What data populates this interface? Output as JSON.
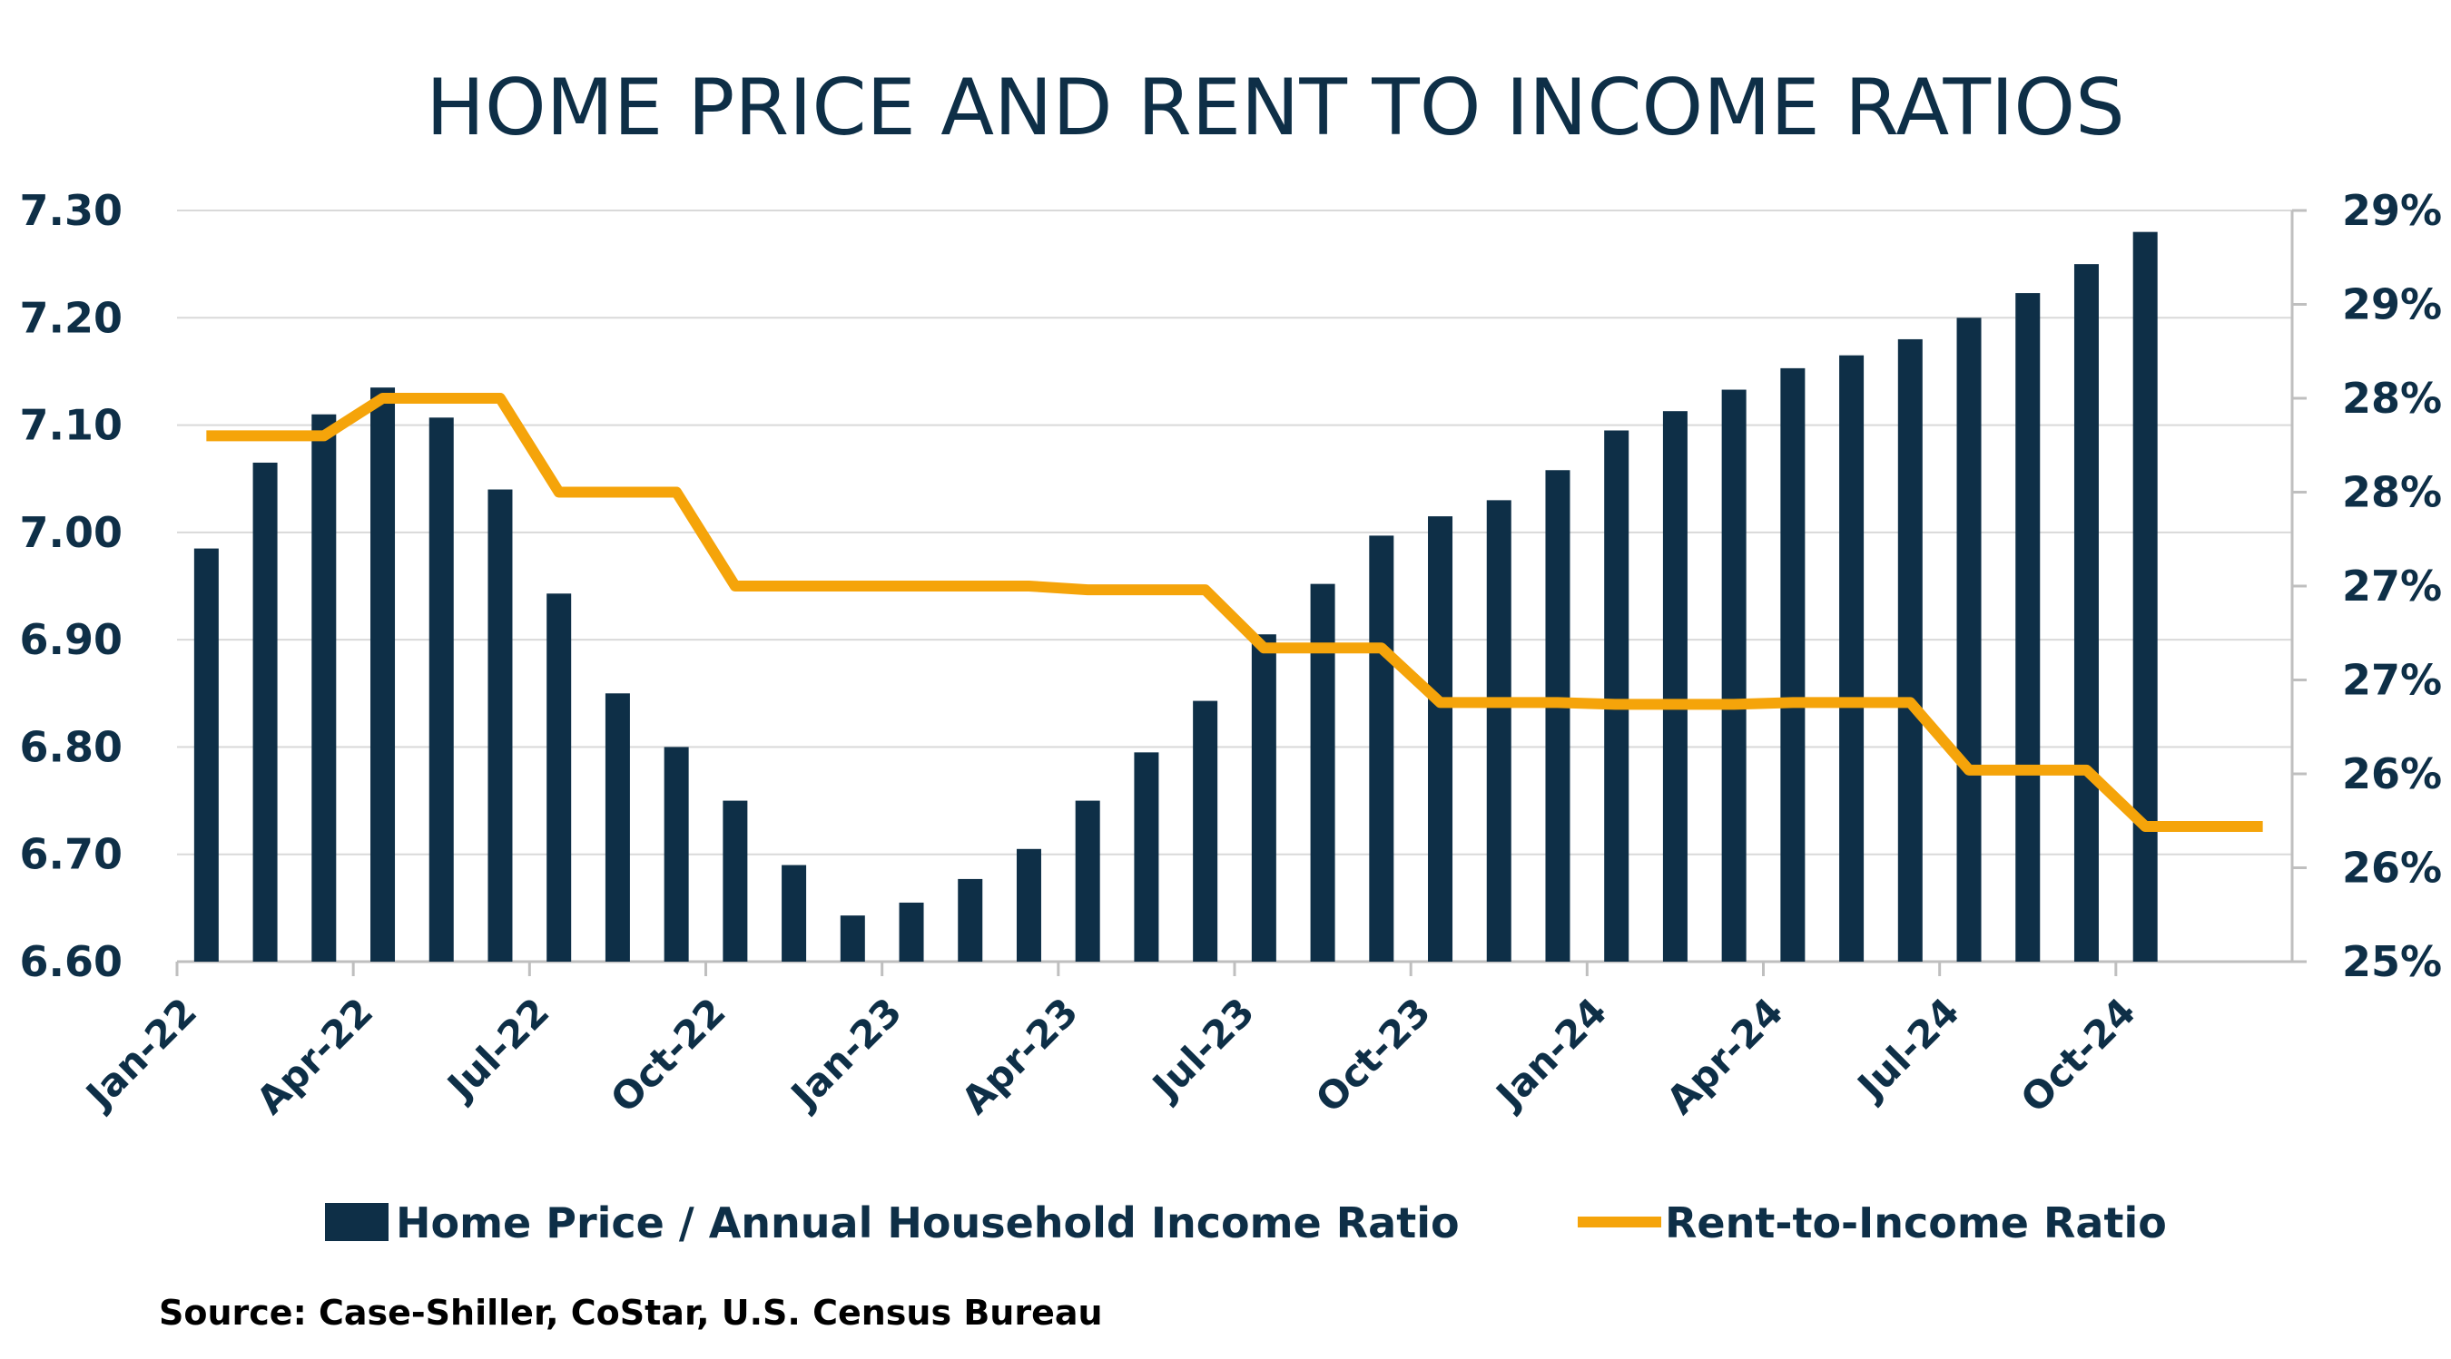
{
  "chart_data": {
    "type": "bar+line",
    "title": "HOME PRICE AND RENT TO INCOME RATIOS",
    "colors": {
      "bar": "#0e2f47",
      "line": "#f5a40a",
      "grid": "#d9d9d9",
      "axis": "#bfbfbf",
      "text": "#0e2f47"
    },
    "categories": [
      "Jan-22",
      "Feb-22",
      "Mar-22",
      "Apr-22",
      "May-22",
      "Jun-22",
      "Jul-22",
      "Aug-22",
      "Sep-22",
      "Oct-22",
      "Nov-22",
      "Dec-22",
      "Jan-23",
      "Feb-23",
      "Mar-23",
      "Apr-23",
      "May-23",
      "Jun-23",
      "Jul-23",
      "Aug-23",
      "Sep-23",
      "Oct-23",
      "Nov-23",
      "Dec-23",
      "Jan-24",
      "Feb-24",
      "Mar-24",
      "Apr-24",
      "May-24",
      "Jun-24",
      "Jul-24",
      "Aug-24",
      "Sep-24",
      "Oct-24",
      "Nov-24",
      "Dec-24"
    ],
    "x_tick_labels": [
      "Jan-22",
      "Apr-22",
      "Jul-22",
      "Oct-22",
      "Jan-23",
      "Apr-23",
      "Jul-23",
      "Oct-23",
      "Jan-24",
      "Apr-24",
      "Jul-24",
      "Oct-24"
    ],
    "x_tick_categories": [
      0,
      3,
      6,
      9,
      12,
      15,
      18,
      21,
      24,
      27,
      30,
      33
    ],
    "left_axis": {
      "ylim": [
        6.6,
        7.3
      ],
      "ticks": [
        6.6,
        6.7,
        6.8,
        6.9,
        7.0,
        7.1,
        7.2,
        7.3
      ],
      "tick_labels": [
        "6.60",
        "6.70",
        "6.80",
        "6.90",
        "7.00",
        "7.10",
        "7.20",
        "7.30"
      ]
    },
    "right_axis": {
      "ylim": [
        25.0,
        29.0
      ],
      "ticks": [
        25.0,
        25.5,
        26.0,
        26.5,
        27.0,
        27.5,
        28.0,
        28.5,
        29.0
      ],
      "tick_labels": [
        "25%",
        "26%",
        "26%",
        "27%",
        "27%",
        "28%",
        "28%",
        "29%",
        "29%"
      ]
    },
    "series": [
      {
        "name": "Home Price / Annual Household Income Ratio",
        "kind": "bar",
        "axis": "left",
        "values": [
          6.985,
          7.065,
          7.11,
          7.135,
          7.107,
          7.04,
          6.943,
          6.85,
          6.8,
          6.75,
          6.69,
          6.643,
          6.655,
          6.677,
          6.705,
          6.75,
          6.795,
          6.843,
          6.905,
          6.952,
          6.997,
          7.015,
          7.03,
          7.058,
          7.095,
          7.113,
          7.133,
          7.153,
          7.165,
          7.18,
          7.2,
          7.223,
          7.25,
          7.28,
          null,
          null
        ]
      },
      {
        "name": "Rent-to-Income Ratio",
        "kind": "line",
        "axis": "right",
        "values": [
          27.8,
          27.8,
          27.8,
          28.0,
          28.0,
          28.0,
          27.5,
          27.5,
          27.5,
          27.0,
          27.0,
          27.0,
          27.0,
          27.0,
          27.0,
          26.98,
          26.98,
          26.98,
          26.67,
          26.67,
          26.67,
          26.38,
          26.38,
          26.38,
          26.37,
          26.37,
          26.37,
          26.38,
          26.38,
          26.38,
          26.02,
          26.02,
          26.02,
          25.72,
          25.72,
          25.72
        ]
      }
    ],
    "legend": [
      {
        "label": "Home Price / Annual Household Income Ratio",
        "kind": "bar"
      },
      {
        "label": "Rent-to-Income Ratio",
        "kind": "line"
      }
    ],
    "legend_position": "bottom",
    "source": "Source: Case-Shiller, CoStar, U.S. Census Bureau",
    "grid": true
  }
}
